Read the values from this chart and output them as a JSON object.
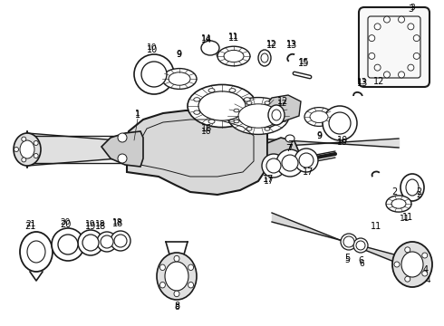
{
  "bg_color": "#ffffff",
  "line_color": "#1a1a1a",
  "figsize": [
    4.9,
    3.6
  ],
  "dpi": 100,
  "xlim": [
    0,
    490
  ],
  "ylim": [
    0,
    360
  ]
}
